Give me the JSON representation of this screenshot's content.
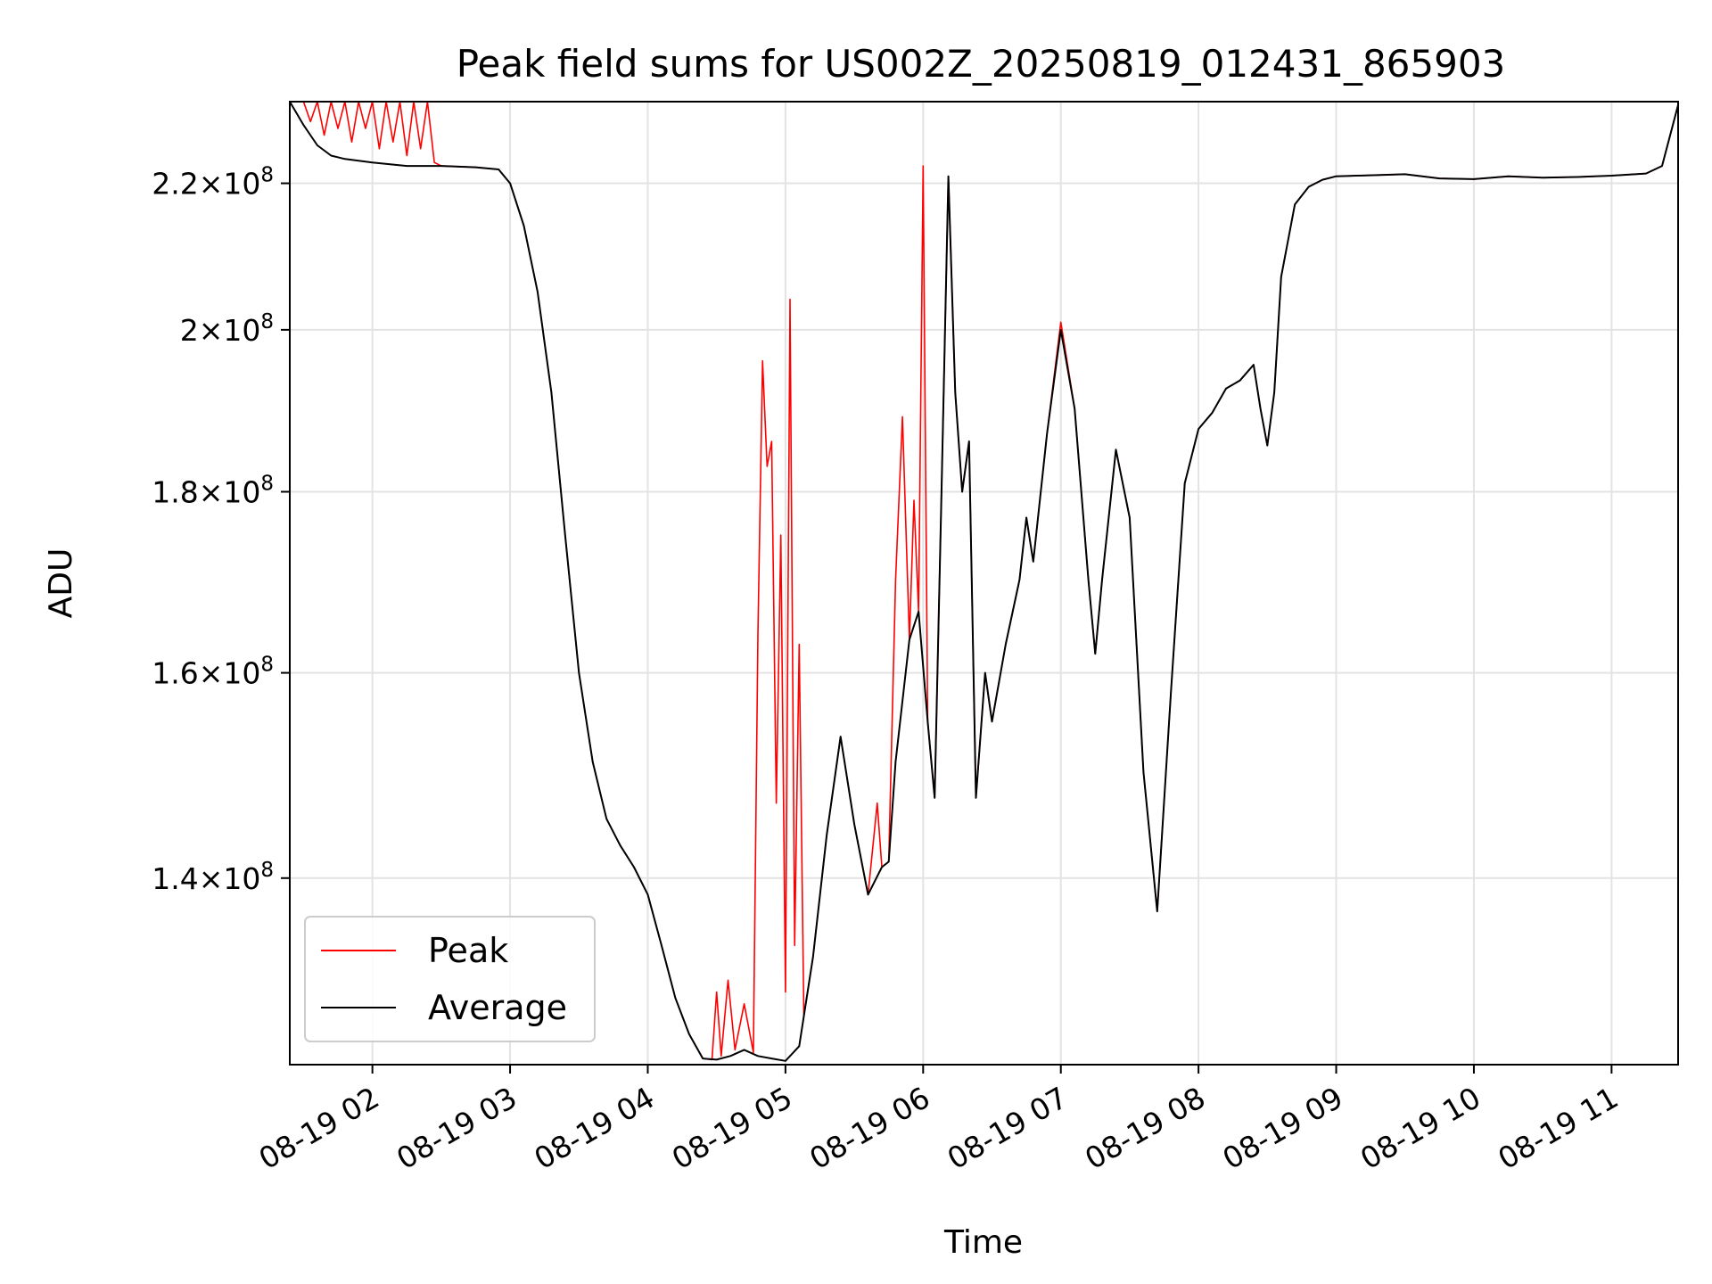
{
  "chart_data": {
    "type": "line",
    "title": "Peak field sums for US002Z_20250819_012431_865903",
    "xlabel": "Time",
    "ylabel": "ADU",
    "y_scale": "log",
    "xlim": [
      "08-19 01:24",
      "08-19 11:29"
    ],
    "ylim": [
      124000000,
      232000000
    ],
    "grid": true,
    "legend_position": "lower-left",
    "x_tick_labels": [
      "08-19 02",
      "08-19 03",
      "08-19 04",
      "08-19 05",
      "08-19 06",
      "08-19 07",
      "08-19 08",
      "08-19 09",
      "08-19 10",
      "08-19 11"
    ],
    "y_tick_labels": [
      {
        "base": "1.4",
        "exp": "8",
        "value": 140000000
      },
      {
        "base": "1.6",
        "exp": "8",
        "value": 160000000
      },
      {
        "base": "1.8",
        "exp": "8",
        "value": 180000000
      },
      {
        "base": "2",
        "exp": "8",
        "value": 200000000
      },
      {
        "base": "2.2",
        "exp": "8",
        "value": 220000000
      }
    ],
    "series": [
      {
        "name": "Average",
        "color": "#000000",
        "x": [
          "08-19 01:24",
          "08-19 01:30",
          "08-19 01:36",
          "08-19 01:42",
          "08-19 01:48",
          "08-19 02:00",
          "08-19 02:15",
          "08-19 02:30",
          "08-19 02:45",
          "08-19 02:55",
          "08-19 03:00",
          "08-19 03:06",
          "08-19 03:12",
          "08-19 03:18",
          "08-19 03:24",
          "08-19 03:30",
          "08-19 03:36",
          "08-19 03:42",
          "08-19 03:48",
          "08-19 03:54",
          "08-19 04:00",
          "08-19 04:06",
          "08-19 04:12",
          "08-19 04:18",
          "08-19 04:24",
          "08-19 04:30",
          "08-19 04:36",
          "08-19 04:42",
          "08-19 04:48",
          "08-19 04:54",
          "08-19 05:00",
          "08-19 05:06",
          "08-19 05:12",
          "08-19 05:18",
          "08-19 05:24",
          "08-19 05:30",
          "08-19 05:36",
          "08-19 05:42",
          "08-19 05:45",
          "08-19 05:48",
          "08-19 05:54",
          "08-19 05:58",
          "08-19 06:02",
          "08-19 06:05",
          "08-19 06:08",
          "08-19 06:11",
          "08-19 06:14",
          "08-19 06:17",
          "08-19 06:20",
          "08-19 06:23",
          "08-19 06:27",
          "08-19 06:30",
          "08-19 06:36",
          "08-19 06:42",
          "08-19 06:45",
          "08-19 06:48",
          "08-19 06:54",
          "08-19 07:00",
          "08-19 07:06",
          "08-19 07:12",
          "08-19 07:15",
          "08-19 07:18",
          "08-19 07:24",
          "08-19 07:30",
          "08-19 07:36",
          "08-19 07:42",
          "08-19 07:48",
          "08-19 07:54",
          "08-19 08:00",
          "08-19 08:06",
          "08-19 08:12",
          "08-19 08:18",
          "08-19 08:24",
          "08-19 08:27",
          "08-19 08:30",
          "08-19 08:33",
          "08-19 08:36",
          "08-19 08:42",
          "08-19 08:48",
          "08-19 08:54",
          "08-19 09:00",
          "08-19 09:30",
          "08-19 09:45",
          "08-19 10:00",
          "08-19 10:15",
          "08-19 10:30",
          "08-19 10:45",
          "08-19 11:00",
          "08-19 11:15",
          "08-19 11:22",
          "08-19 11:29"
        ],
        "y": [
          232000000,
          228500000,
          225500000,
          224000000,
          223500000,
          223000000,
          222500000,
          222500000,
          222300000,
          222000000,
          220000000,
          214000000,
          205000000,
          192000000,
          175000000,
          160000000,
          151000000,
          145500000,
          143000000,
          141000000,
          138500000,
          134000000,
          129500000,
          126500000,
          124500000,
          124400000,
          124700000,
          125200000,
          124700000,
          124500000,
          124300000,
          125500000,
          133000000,
          144000000,
          153500000,
          145000000,
          138500000,
          141000000,
          141500000,
          151000000,
          163500000,
          166500000,
          155000000,
          147500000,
          180000000,
          221000000,
          192000000,
          180000000,
          186000000,
          147500000,
          160000000,
          155000000,
          163000000,
          170000000,
          177000000,
          172000000,
          187000000,
          200000000,
          190000000,
          170000000,
          162000000,
          170000000,
          185000000,
          177000000,
          150000000,
          137000000,
          158000000,
          181000000,
          187500000,
          189500000,
          192500000,
          193500000,
          195500000,
          190000000,
          185500000,
          192000000,
          207000000,
          217000000,
          219500000,
          220500000,
          221000000,
          221300000,
          220700000,
          220600000,
          221000000,
          220800000,
          220900000,
          221100000,
          221400000,
          222500000,
          231500000
        ]
      },
      {
        "name": "Peak",
        "color": "#ff0000",
        "x": [
          "08-19 01:24",
          "08-19 01:30",
          "08-19 01:33",
          "08-19 01:36",
          "08-19 01:39",
          "08-19 01:42",
          "08-19 01:45",
          "08-19 01:48",
          "08-19 01:51",
          "08-19 01:54",
          "08-19 01:57",
          "08-19 02:00",
          "08-19 02:03",
          "08-19 02:06",
          "08-19 02:09",
          "08-19 02:12",
          "08-19 02:15",
          "08-19 02:18",
          "08-19 02:21",
          "08-19 02:24",
          "08-19 02:27",
          "08-19 02:30",
          "08-19 02:45",
          "08-19 02:55",
          "08-19 03:00",
          "08-19 03:06",
          "08-19 03:12",
          "08-19 03:18",
          "08-19 03:24",
          "08-19 03:30",
          "08-19 03:36",
          "08-19 03:42",
          "08-19 03:48",
          "08-19 03:54",
          "08-19 04:00",
          "08-19 04:06",
          "08-19 04:12",
          "08-19 04:18",
          "08-19 04:24",
          "08-19 04:28",
          "08-19 04:30",
          "08-19 04:32",
          "08-19 04:35",
          "08-19 04:38",
          "08-19 04:42",
          "08-19 04:46",
          "08-19 04:48",
          "08-19 04:50",
          "08-19 04:52",
          "08-19 04:54",
          "08-19 04:56",
          "08-19 04:58",
          "08-19 05:00",
          "08-19 05:02",
          "08-19 05:04",
          "08-19 05:06",
          "08-19 05:08",
          "08-19 05:12",
          "08-19 05:18",
          "08-19 05:24",
          "08-19 05:30",
          "08-19 05:36",
          "08-19 05:40",
          "08-19 05:42",
          "08-19 05:45",
          "08-19 05:48",
          "08-19 05:51",
          "08-19 05:54",
          "08-19 05:56",
          "08-19 05:58",
          "08-19 06:00",
          "08-19 06:02",
          "08-19 06:05",
          "08-19 06:08",
          "08-19 06:11",
          "08-19 06:14",
          "08-19 06:17",
          "08-19 06:20",
          "08-19 06:23",
          "08-19 06:27",
          "08-19 06:30",
          "08-19 06:36",
          "08-19 06:42",
          "08-19 06:45",
          "08-19 06:48",
          "08-19 06:54",
          "08-19 07:00",
          "08-19 07:06",
          "08-19 07:12",
          "08-19 07:15",
          "08-19 07:18",
          "08-19 07:24",
          "08-19 07:30",
          "08-19 07:36",
          "08-19 07:42",
          "08-19 07:48",
          "08-19 07:54",
          "08-19 08:00",
          "08-19 08:06",
          "08-19 08:12",
          "08-19 08:18",
          "08-19 08:24",
          "08-19 08:27",
          "08-19 08:30",
          "08-19 08:33",
          "08-19 08:36",
          "08-19 08:42",
          "08-19 08:48",
          "08-19 08:54",
          "08-19 09:00",
          "08-19 09:30",
          "08-19 09:45",
          "08-19 10:00",
          "08-19 10:15",
          "08-19 10:30",
          "08-19 10:45",
          "08-19 11:00",
          "08-19 11:15",
          "08-19 11:22",
          "08-19 11:29"
        ],
        "y": [
          232000000,
          232000000,
          229000000,
          232000000,
          227000000,
          232000000,
          228000000,
          232000000,
          226000000,
          232000000,
          228000000,
          232000000,
          225000000,
          232000000,
          226000000,
          232000000,
          224000000,
          232000000,
          225000000,
          232000000,
          223000000,
          222500000,
          222300000,
          222000000,
          220000000,
          214000000,
          205000000,
          192000000,
          175000000,
          160000000,
          151000000,
          145500000,
          143000000,
          141000000,
          138500000,
          134000000,
          129500000,
          126500000,
          124500000,
          124400000,
          130000000,
          124700000,
          131000000,
          125200000,
          129000000,
          125000000,
          164000000,
          196000000,
          183000000,
          186000000,
          147000000,
          175000000,
          130000000,
          204000000,
          134000000,
          163000000,
          128000000,
          133000000,
          144000000,
          153500000,
          145000000,
          138500000,
          147000000,
          141000000,
          141500000,
          170000000,
          189000000,
          163500000,
          179000000,
          166500000,
          222500000,
          155000000,
          147500000,
          180000000,
          221000000,
          192000000,
          180000000,
          186000000,
          147500000,
          160000000,
          155000000,
          163000000,
          170000000,
          177000000,
          172000000,
          187000000,
          201000000,
          190000000,
          170000000,
          162000000,
          170000000,
          185000000,
          177000000,
          150000000,
          137000000,
          158000000,
          181000000,
          187500000,
          189500000,
          192500000,
          193500000,
          195500000,
          190000000,
          185500000,
          192000000,
          207000000,
          217000000,
          219500000,
          220500000,
          221000000,
          221300000,
          220700000,
          220600000,
          221000000,
          220800000,
          220900000,
          221100000,
          221400000,
          222500000,
          231500000
        ]
      }
    ]
  }
}
